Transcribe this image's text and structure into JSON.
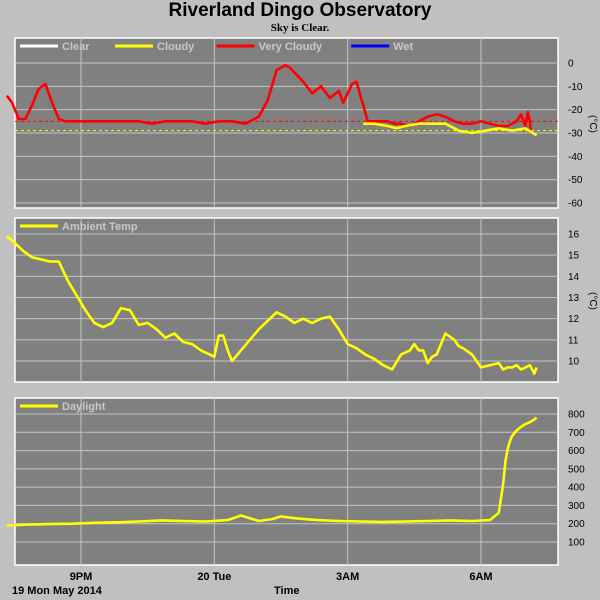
{
  "header": {
    "title": "Riverland Dingo Observatory",
    "subtitle": "Sky is Clear."
  },
  "footer": {
    "date_label": "19 Mon May 2014",
    "x_axis_label": "Time"
  },
  "colors": {
    "clear": "#ffffff",
    "cloudy": "#ffff00",
    "very_cloudy": "#ff0000",
    "wet": "#0000ff",
    "panel_background": "#808080",
    "page_background": "#c0c0c0"
  },
  "chart_data": [
    {
      "type": "line",
      "panel": "sky",
      "legend_position": "top-left",
      "legend": [
        "Clear",
        "Cloudy",
        "Very Cloudy",
        "Wet"
      ],
      "y_unit": "(°C)",
      "ylim": [
        -60,
        5
      ],
      "yticks": [
        0,
        -10,
        -20,
        -30,
        -40,
        -50,
        -60
      ],
      "thresholds": [
        {
          "name": "Cloudy",
          "value": -29
        },
        {
          "name": "Very Cloudy",
          "value": -25
        }
      ],
      "xlim": [
        19.3,
        31.3
      ],
      "series": [
        {
          "name": "Very Cloudy",
          "x": [
            19.33,
            19.45,
            19.6,
            19.75,
            19.9,
            20.05,
            20.2,
            20.35,
            20.5,
            20.65,
            20.8,
            21.0,
            21.3,
            21.7,
            22.1,
            22.3,
            22.6,
            22.9,
            23.2,
            23.5,
            23.8,
            24.1,
            24.4,
            24.7,
            25.0,
            25.2,
            25.4,
            25.6,
            25.7,
            25.8,
            26.0,
            26.2,
            26.4,
            26.6,
            26.8,
            26.9,
            27.0,
            27.1,
            27.2,
            27.3,
            27.35,
            27.45,
            27.6,
            27.8,
            27.9,
            28.05,
            28.2,
            28.4,
            28.6,
            28.8,
            29.0,
            29.2,
            29.4,
            29.6,
            29.8,
            30.0,
            30.2,
            30.4,
            30.6,
            30.8,
            30.9,
            31.0,
            31.05,
            31.1,
            31.12
          ],
          "y": [
            -14,
            -17,
            -24,
            -24,
            -18,
            -11,
            -9,
            -17,
            -24,
            -25,
            -25,
            -25,
            -25,
            -25,
            -25,
            -25,
            -26,
            -25,
            -25,
            -25,
            -26,
            -25,
            -25,
            -26,
            -23,
            -16,
            -3,
            -1,
            -2,
            -4,
            -8,
            -13,
            -10,
            -15,
            -12,
            -17,
            -13,
            -9,
            -8,
            -15,
            -18,
            -25,
            -25,
            -25,
            -25,
            -26,
            -26,
            -27,
            -25,
            -23,
            -22,
            -23,
            -25,
            -26,
            -26,
            -25,
            -26,
            -27,
            -27,
            -25,
            -22,
            -27,
            -21,
            -25,
            -30
          ]
        },
        {
          "name": "Cloudy",
          "x": [
            27.35,
            27.6,
            27.9,
            28.1,
            28.3,
            28.6,
            29.2,
            29.5,
            29.8,
            30.1,
            30.4,
            30.7,
            31.0,
            31.25
          ],
          "y": [
            -26,
            -26,
            -27,
            -28,
            -27,
            -26,
            -26,
            -29,
            -30,
            -29,
            -28,
            -29,
            -28,
            -31
          ]
        }
      ]
    },
    {
      "type": "line",
      "panel": "ambient",
      "legend_position": "top-left",
      "legend": [
        "Ambient Temp"
      ],
      "y_unit": "(°C)",
      "ylim": [
        9,
        16.6
      ],
      "yticks": [
        10,
        11,
        12,
        13,
        14,
        15,
        16
      ],
      "xlim": [
        19.3,
        31.3
      ],
      "series": [
        {
          "name": "Ambient Temp",
          "x": [
            19.33,
            19.5,
            19.7,
            19.9,
            20.1,
            20.3,
            20.5,
            20.7,
            20.9,
            21.1,
            21.3,
            21.5,
            21.7,
            21.9,
            22.1,
            22.3,
            22.5,
            22.7,
            22.9,
            23.1,
            23.3,
            23.5,
            23.7,
            23.9,
            24.0,
            24.1,
            24.2,
            24.3,
            24.4,
            24.6,
            24.8,
            25.0,
            25.2,
            25.4,
            25.6,
            25.8,
            26.0,
            26.2,
            26.4,
            26.6,
            26.8,
            27.0,
            27.2,
            27.4,
            27.6,
            27.8,
            28.0,
            28.2,
            28.4,
            28.5,
            28.6,
            28.7,
            28.8,
            28.9,
            29.0,
            29.2,
            29.4,
            29.5,
            29.6,
            29.8,
            30.0,
            30.2,
            30.4,
            30.5,
            30.6,
            30.7,
            30.8,
            30.9,
            31.0,
            31.1,
            31.2,
            31.25
          ],
          "y": [
            15.9,
            15.6,
            15.2,
            14.9,
            14.8,
            14.7,
            14.7,
            13.8,
            13.1,
            12.4,
            11.8,
            11.6,
            11.8,
            12.5,
            12.4,
            11.7,
            11.8,
            11.5,
            11.1,
            11.3,
            10.9,
            10.8,
            10.5,
            10.3,
            10.2,
            11.2,
            11.2,
            10.5,
            10.0,
            10.5,
            11.0,
            11.5,
            11.9,
            12.3,
            12.1,
            11.8,
            12.0,
            11.8,
            12.0,
            12.1,
            11.5,
            10.8,
            10.6,
            10.3,
            10.1,
            9.8,
            9.6,
            10.3,
            10.5,
            10.8,
            10.5,
            10.5,
            9.9,
            10.2,
            10.3,
            11.3,
            11.0,
            10.7,
            10.6,
            10.3,
            9.7,
            9.8,
            9.9,
            9.6,
            9.7,
            9.7,
            9.8,
            9.6,
            9.7,
            9.8,
            9.4,
            9.7
          ]
        }
      ]
    },
    {
      "type": "line",
      "panel": "daylight",
      "legend_position": "top-left",
      "legend": [
        "Daylight"
      ],
      "y_unit": "",
      "ylim": [
        75,
        850
      ],
      "yticks": [
        100,
        200,
        300,
        400,
        500,
        600,
        700,
        800
      ],
      "xlim": [
        19.3,
        31.3
      ],
      "xticks": [
        {
          "label": "9PM",
          "value": 21
        },
        {
          "label": "20 Tue",
          "value": 24
        },
        {
          "label": "3AM",
          "value": 27
        },
        {
          "label": "6AM",
          "value": 30
        }
      ],
      "series": [
        {
          "name": "Daylight",
          "x": [
            19.33,
            19.8,
            20.3,
            20.8,
            21.3,
            21.8,
            22.3,
            22.8,
            23.3,
            23.8,
            24.3,
            24.6,
            24.8,
            25.0,
            25.3,
            25.5,
            25.8,
            26.3,
            26.8,
            27.3,
            27.8,
            28.3,
            28.8,
            29.3,
            29.8,
            30.2,
            30.4,
            30.5,
            30.55,
            30.6,
            30.65,
            30.7,
            30.8,
            30.9,
            31.0,
            31.1,
            31.2,
            31.25
          ],
          "y": [
            190,
            195,
            198,
            200,
            205,
            208,
            212,
            218,
            215,
            212,
            220,
            245,
            230,
            215,
            225,
            240,
            230,
            220,
            215,
            212,
            210,
            212,
            215,
            218,
            215,
            220,
            260,
            420,
            540,
            610,
            650,
            680,
            710,
            730,
            745,
            755,
            770,
            780
          ]
        }
      ]
    }
  ]
}
